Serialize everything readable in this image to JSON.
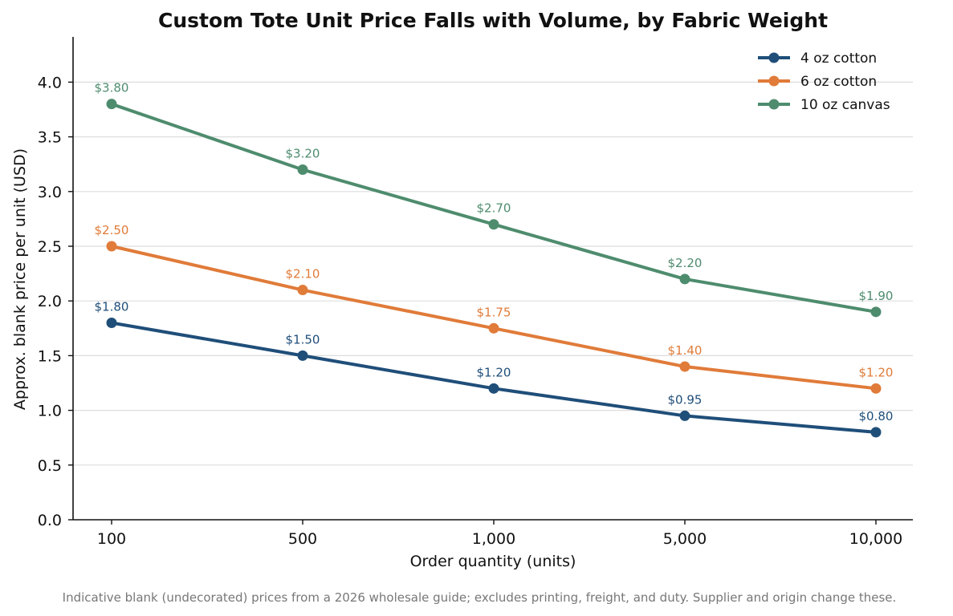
{
  "chart_data": {
    "type": "line",
    "title": "Custom Tote Unit Price Falls with Volume, by Fabric Weight",
    "xlabel": "Order quantity (units)",
    "ylabel": "Approx. blank price per unit (USD)",
    "categories": [
      "100",
      "500",
      "1,000",
      "5,000",
      "10,000"
    ],
    "ylim": [
      0,
      4.4
    ],
    "yticks": [
      "0.0",
      "0.5",
      "1.0",
      "1.5",
      "2.0",
      "2.5",
      "3.0",
      "3.5",
      "4.0"
    ],
    "grid": "horizontal",
    "legend_position": "top-right",
    "series": [
      {
        "name": "4 oz cotton",
        "color": "#1f4e79",
        "values": [
          1.8,
          1.5,
          1.2,
          0.95,
          0.8
        ],
        "labels": [
          "$1.80",
          "$1.50",
          "$1.20",
          "$0.95",
          "$0.80"
        ]
      },
      {
        "name": "6 oz cotton",
        "color": "#e07b39",
        "values": [
          2.5,
          2.1,
          1.75,
          1.4,
          1.2
        ],
        "labels": [
          "$2.50",
          "$2.10",
          "$1.75",
          "$1.40",
          "$1.20"
        ]
      },
      {
        "name": "10 oz canvas",
        "color": "#4e8c6e",
        "values": [
          3.8,
          3.2,
          2.7,
          2.2,
          1.9
        ],
        "labels": [
          "$3.80",
          "$3.20",
          "$2.70",
          "$2.20",
          "$1.90"
        ]
      }
    ],
    "caption": "Indicative blank (undecorated) prices from a 2026 wholesale guide; excludes printing, freight, and duty. Supplier and origin change these."
  }
}
